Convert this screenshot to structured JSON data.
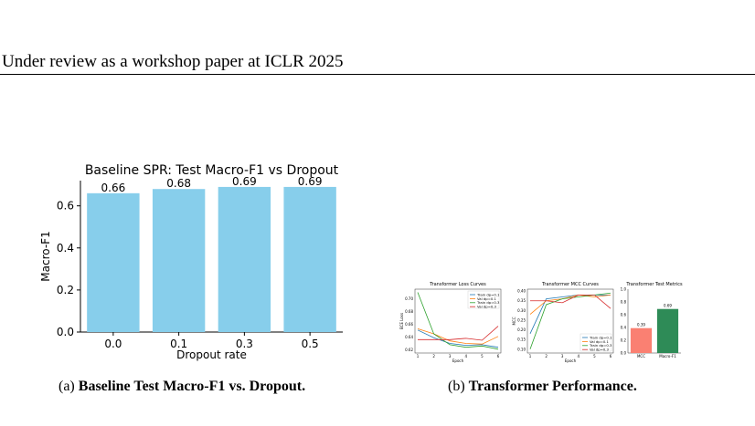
{
  "header": {
    "running_title": "Under review as a workshop paper at ICLR 2025"
  },
  "figure_a": {
    "caption_label": "(a)",
    "caption_text": "Baseline Test Macro-F1 vs. Dropout."
  },
  "figure_b": {
    "caption_label": "(b)",
    "caption_text": "Transformer Performance."
  },
  "chart_data": [
    {
      "type": "bar",
      "title": "Baseline SPR: Test Macro-F1 vs Dropout",
      "xlabel": "Dropout rate",
      "ylabel": "Macro-F1",
      "categories": [
        "0.0",
        "0.1",
        "0.3",
        "0.5"
      ],
      "values": [
        0.66,
        0.68,
        0.69,
        0.69
      ],
      "data_labels": [
        "0.66",
        "0.68",
        "0.69",
        "0.69"
      ],
      "ylim": [
        0,
        0.72
      ],
      "yticks": [
        "0.0",
        "0.2",
        "0.4",
        "0.6"
      ],
      "ytick_values": [
        0,
        0.2,
        0.4,
        0.6
      ],
      "color": "#87ceeb",
      "grid": false
    },
    {
      "type": "line",
      "title": "Transformer Loss Curves",
      "xlabel": "Epoch",
      "ylabel": "BCE Loss",
      "x": [
        1,
        2,
        3,
        4,
        5,
        6
      ],
      "xticks": [
        "1",
        "2",
        "3",
        "4",
        "5",
        "6"
      ],
      "ylim": [
        0.615,
        0.715
      ],
      "yticks": [
        "0.62",
        "0.64",
        "0.66",
        "0.68",
        "0.70"
      ],
      "ytick_values": [
        0.62,
        0.64,
        0.66,
        0.68,
        0.7
      ],
      "legend_position": "top-right",
      "series": [
        {
          "name": "Train dp=0.1",
          "color": "#1f77b4",
          "values": [
            0.651,
            0.639,
            0.63,
            0.627,
            0.628,
            0.624
          ]
        },
        {
          "name": "Val dp=0.1",
          "color": "#ff7f0e",
          "values": [
            0.653,
            0.645,
            0.634,
            0.63,
            0.629,
            0.641
          ]
        },
        {
          "name": "Train dp=0.3",
          "color": "#2ca02c",
          "values": [
            0.71,
            0.645,
            0.628,
            0.624,
            0.626,
            0.621
          ]
        },
        {
          "name": "Val dp=0.3",
          "color": "#d62728",
          "values": [
            0.636,
            0.636,
            0.636,
            0.638,
            0.635,
            0.657
          ]
        }
      ]
    },
    {
      "type": "line",
      "title": "Transformer MCC Curves",
      "xlabel": "Epoch",
      "ylabel": "MCC",
      "x": [
        1,
        2,
        3,
        4,
        5,
        6
      ],
      "xticks": [
        "1",
        "2",
        "3",
        "4",
        "5",
        "6"
      ],
      "ylim": [
        0.08,
        0.41
      ],
      "yticks": [
        "0.10",
        "0.15",
        "0.20",
        "0.25",
        "0.30",
        "0.35",
        "0.40"
      ],
      "ytick_values": [
        0.1,
        0.15,
        0.2,
        0.25,
        0.3,
        0.35,
        0.4
      ],
      "legend_position": "bottom-right",
      "series": [
        {
          "name": "Train dp=0.1",
          "color": "#1f77b4",
          "values": [
            0.18,
            0.36,
            0.37,
            0.38,
            0.38,
            0.38
          ]
        },
        {
          "name": "Val dp=0.1",
          "color": "#ff7f0e",
          "values": [
            0.28,
            0.35,
            0.36,
            0.38,
            0.37,
            0.38
          ]
        },
        {
          "name": "Train dp=0.3",
          "color": "#2ca02c",
          "values": [
            0.1,
            0.33,
            0.36,
            0.37,
            0.38,
            0.39
          ]
        },
        {
          "name": "Val dp=0.3",
          "color": "#d62728",
          "values": [
            0.35,
            0.35,
            0.34,
            0.38,
            0.38,
            0.31
          ]
        }
      ]
    },
    {
      "type": "bar",
      "title": "Transformer Test Metrics",
      "categories": [
        "MCC",
        "Macro-F1"
      ],
      "values": [
        0.39,
        0.69
      ],
      "data_labels": [
        "0.39",
        "0.69"
      ],
      "colors": [
        "#fa8072",
        "#2e8b57"
      ],
      "ylim": [
        0,
        1.0
      ],
      "yticks": [
        "0.0",
        "0.2",
        "0.4",
        "0.6",
        "0.8",
        "1.0"
      ],
      "ytick_values": [
        0,
        0.2,
        0.4,
        0.6,
        0.8,
        1.0
      ],
      "grid": false
    }
  ]
}
